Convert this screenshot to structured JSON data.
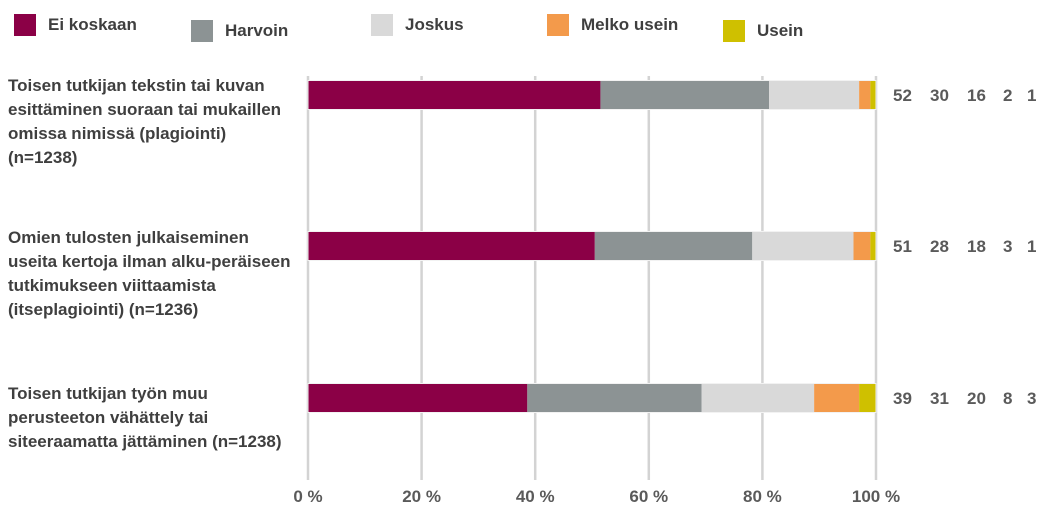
{
  "chart_data": {
    "type": "bar",
    "orientation": "horizontal",
    "stacked": true,
    "categories": [
      "Toisen tutkijan tekstin tai kuvan esittäminen suoraan tai mukaillen omissa nimissä (plagiointi) (n=1238)",
      "Omien tulosten julkaiseminen useita kertoja ilman alku-peräiseen tutkimukseen viittaamista (itseplagiointi) (n=1236)",
      "Toisen tutkijan työn muu perusteeton vähättely tai siteeraamatta jättäminen (n=1238)"
    ],
    "series": [
      {
        "name": "Ei koskaan",
        "color": "#8b0046",
        "values": [
          52,
          51,
          39
        ]
      },
      {
        "name": "Harvoin",
        "color": "#8c9394",
        "values": [
          30,
          28,
          31
        ]
      },
      {
        "name": "Joskus",
        "color": "#d9d9d9",
        "values": [
          16,
          18,
          20
        ]
      },
      {
        "name": "Melko usein",
        "color": "#f39a4b",
        "values": [
          2,
          3,
          8
        ]
      },
      {
        "name": "Usein",
        "color": "#cfc000",
        "values": [
          1,
          1,
          3
        ]
      }
    ],
    "value_labels": [
      [
        "52",
        "30",
        "16",
        "2",
        "1"
      ],
      [
        "51",
        "28",
        "18",
        "3",
        "1"
      ],
      [
        "39",
        "31",
        "20",
        "8",
        "3"
      ]
    ],
    "x_ticks": [
      "0 %",
      "20 %",
      "40 %",
      "60 %",
      "80 %",
      "100 %"
    ],
    "xlim": [
      0,
      100
    ],
    "legend_position": "top",
    "grid": true
  }
}
